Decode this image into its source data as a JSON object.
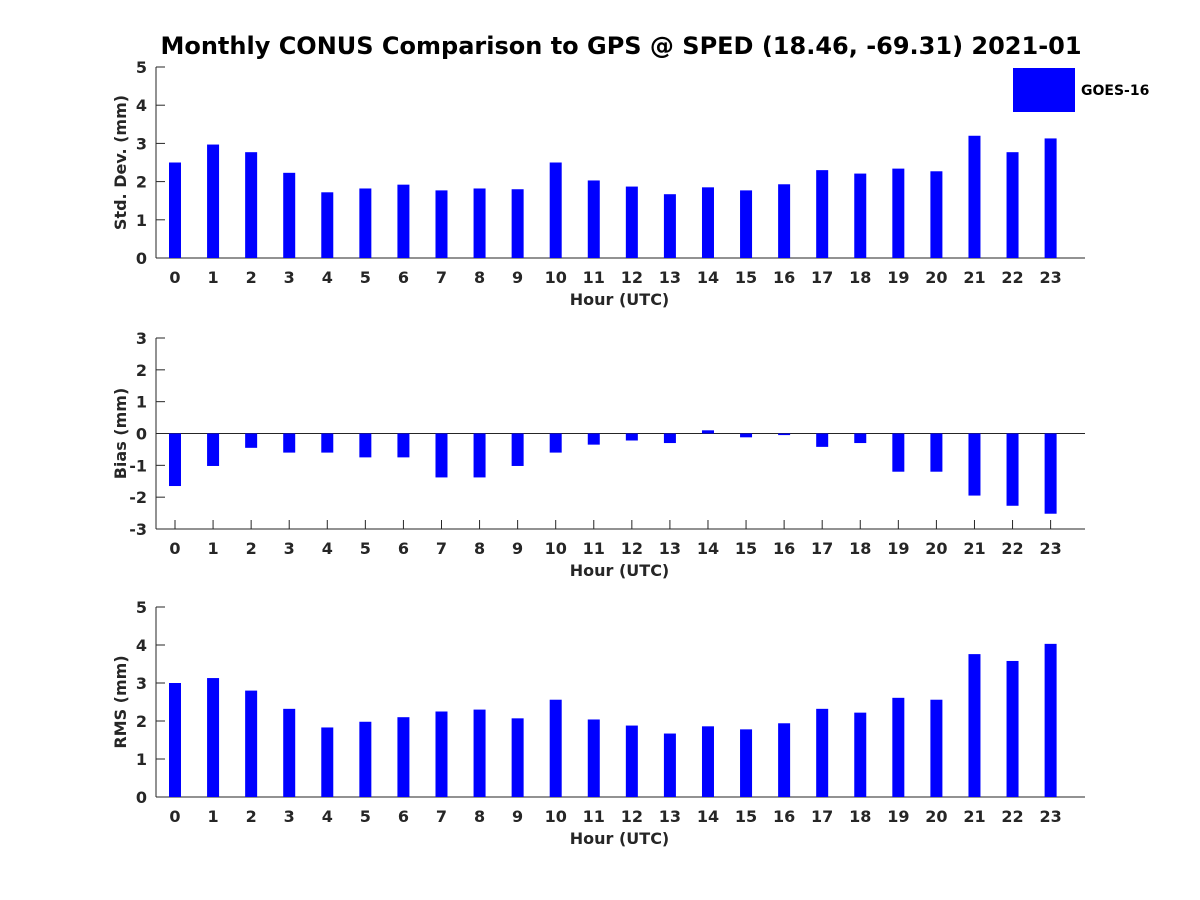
{
  "title": "Monthly CONUS Comparison to GPS @ SPED (18.46, -69.31) 2021-01",
  "legend": {
    "label": "GOES-16",
    "placement": "top-right"
  },
  "colors": {
    "bar": "#0000ff",
    "axis": "#262626"
  },
  "chart_data": [
    {
      "type": "bar",
      "categories": [
        "0",
        "1",
        "2",
        "3",
        "4",
        "5",
        "6",
        "7",
        "8",
        "9",
        "10",
        "11",
        "12",
        "13",
        "14",
        "15",
        "16",
        "17",
        "18",
        "19",
        "20",
        "21",
        "22",
        "23"
      ],
      "series": [
        {
          "name": "GOES-16",
          "values": [
            2.5,
            2.97,
            2.77,
            2.23,
            1.72,
            1.82,
            1.92,
            1.77,
            1.82,
            1.8,
            2.5,
            2.03,
            1.87,
            1.67,
            1.85,
            1.77,
            1.93,
            2.3,
            2.21,
            2.34,
            2.27,
            3.2,
            2.77,
            3.13
          ]
        }
      ],
      "xlabel": "Hour (UTC)",
      "ylabel": "Std. Dev. (mm)",
      "ylim": [
        0,
        5
      ],
      "yticks": [
        0,
        1,
        2,
        3,
        4,
        5
      ],
      "grid": false
    },
    {
      "type": "bar",
      "categories": [
        "0",
        "1",
        "2",
        "3",
        "4",
        "5",
        "6",
        "7",
        "8",
        "9",
        "10",
        "11",
        "12",
        "13",
        "14",
        "15",
        "16",
        "17",
        "18",
        "19",
        "20",
        "21",
        "22",
        "23"
      ],
      "series": [
        {
          "name": "GOES-16",
          "values": [
            -1.65,
            -1.02,
            -0.45,
            -0.6,
            -0.6,
            -0.75,
            -0.75,
            -1.38,
            -1.38,
            -1.02,
            -0.6,
            -0.35,
            -0.22,
            -0.3,
            0.1,
            -0.12,
            -0.05,
            -0.42,
            -0.3,
            -1.2,
            -1.2,
            -1.95,
            -2.27,
            -2.52
          ]
        }
      ],
      "xlabel": "Hour (UTC)",
      "ylabel": "Bias (mm)",
      "ylim": [
        -3,
        3
      ],
      "yticks": [
        -3,
        -2,
        -1,
        0,
        1,
        2,
        3
      ],
      "grid": false
    },
    {
      "type": "bar",
      "categories": [
        "0",
        "1",
        "2",
        "3",
        "4",
        "5",
        "6",
        "7",
        "8",
        "9",
        "10",
        "11",
        "12",
        "13",
        "14",
        "15",
        "16",
        "17",
        "18",
        "19",
        "20",
        "21",
        "22",
        "23"
      ],
      "series": [
        {
          "name": "GOES-16",
          "values": [
            3.0,
            3.13,
            2.8,
            2.32,
            1.83,
            1.98,
            2.1,
            2.25,
            2.3,
            2.07,
            2.56,
            2.04,
            1.88,
            1.67,
            1.86,
            1.78,
            1.94,
            2.32,
            2.22,
            2.61,
            2.56,
            3.76,
            3.58,
            4.03
          ]
        }
      ],
      "xlabel": "Hour (UTC)",
      "ylabel": "RMS (mm)",
      "ylim": [
        0,
        5
      ],
      "yticks": [
        0,
        1,
        2,
        3,
        4,
        5
      ],
      "grid": false
    }
  ]
}
